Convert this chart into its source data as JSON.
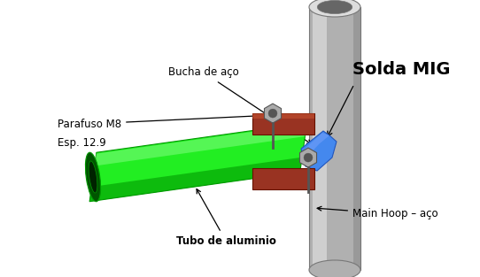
{
  "background_color": "#ffffff",
  "fig_width": 5.42,
  "fig_height": 3.13,
  "dpi": 100,
  "labels": {
    "bucha": "Bucha de aço",
    "parafuso": "Parafuso M8",
    "esp": "Esp. 12.9",
    "solda": "Solda MIG",
    "main_hoop": "Main Hoop – aço",
    "tubo": "Tubo de aluminio"
  },
  "colors": {
    "green_pipe": "#22ee22",
    "green_pipe_dark": "#009900",
    "green_pipe_shadow": "#005500",
    "green_pipe_highlight": "#88ff88",
    "blue_connector": "#4488ee",
    "blue_connector_dark": "#2255bb",
    "blue_connector_light": "#88aaff",
    "brown_clamp": "#993322",
    "brown_clamp_dark": "#661100",
    "brown_clamp_light": "#cc5533",
    "gray_pipe": "#b0b0b0",
    "gray_pipe_dark": "#777777",
    "gray_pipe_light": "#dddddd",
    "gray_inner": "#666666",
    "bolt_color": "#aaaaaa",
    "bolt_dark": "#555555",
    "text_color": "#000000"
  },
  "fontsizes": {
    "regular": 8.5,
    "solda": 14
  }
}
